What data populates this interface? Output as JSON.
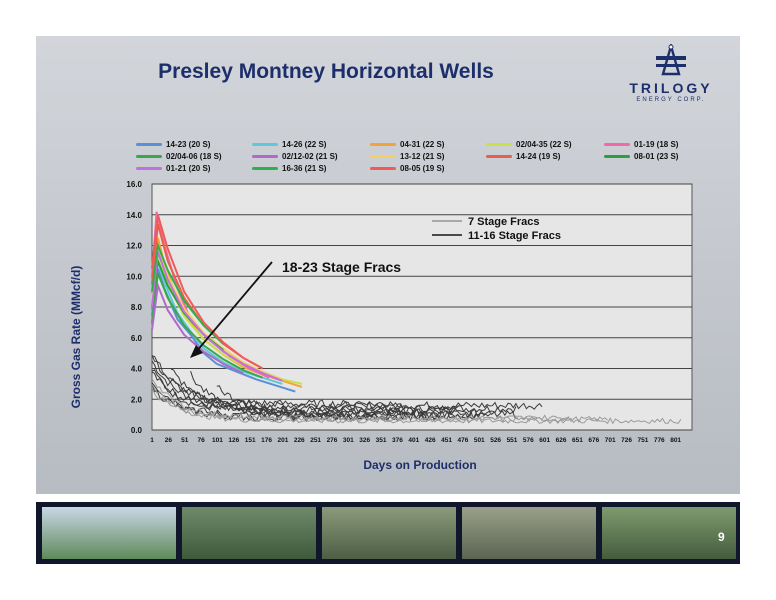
{
  "slide": {
    "title": "Presley Montney Horizontal Wells",
    "page_number": "9",
    "logo": {
      "name": "TRILOGY",
      "sub": "ENERGY CORP."
    }
  },
  "legend": [
    {
      "label": "14-23 (20 S)",
      "color": "#5b8fd6"
    },
    {
      "label": "14-26 (22 S)",
      "color": "#5fc8d8"
    },
    {
      "label": "04-31 (22 S)",
      "color": "#f2a33a"
    },
    {
      "label": "02/04-35 (22 S)",
      "color": "#c8e04a"
    },
    {
      "label": "01-19 (18 S)",
      "color": "#f06aa6"
    },
    {
      "label": "02/04-06 (18 S)",
      "color": "#3aa84a"
    },
    {
      "label": "02/12-02 (21 S)",
      "color": "#b06ac8"
    },
    {
      "label": "13-12 (21 S)",
      "color": "#f5d060"
    },
    {
      "label": "14-24 (19 S)",
      "color": "#e8604a"
    },
    {
      "label": "08-01 (23 S)",
      "color": "#2f9e3a"
    },
    {
      "label": "01-21 (20 S)",
      "color": "#c070e0"
    },
    {
      "label": "16-36 (21 S)",
      "color": "#2fb04a"
    },
    {
      "label": "08-05 (19 S)",
      "color": "#f05a5a"
    }
  ],
  "chart_data": {
    "type": "line",
    "title": "Presley Montney Horizontal Wells",
    "xlabel": "Days on Production",
    "ylabel": "Gross Gas Rate (MMcf/d)",
    "xlim": [
      1,
      826
    ],
    "ylim": [
      0,
      16
    ],
    "y_ticks": [
      "0.0",
      "2.0",
      "4.0",
      "6.0",
      "8.0",
      "10.0",
      "12.0",
      "14.0",
      "16.0"
    ],
    "x_ticks": [
      "1",
      "26",
      "51",
      "76",
      "101",
      "126",
      "151",
      "176",
      "201",
      "226",
      "251",
      "276",
      "301",
      "326",
      "351",
      "376",
      "401",
      "426",
      "451",
      "476",
      "501",
      "526",
      "551",
      "576",
      "601",
      "626",
      "651",
      "676",
      "701",
      "726",
      "751",
      "776",
      "801"
    ],
    "grid": "horizontal",
    "inline_legend": [
      {
        "label": "7 Stage Fracs",
        "color": "#a9a9a9"
      },
      {
        "label": "11-16 Stage Fracs",
        "color": "#4a4a4a"
      }
    ],
    "annotation": "18-23 Stage Fracs",
    "series": [
      {
        "name": "14-23 (20 S)",
        "x": [
          1,
          10,
          20,
          40,
          60,
          80,
          100,
          130,
          160,
          190,
          220
        ],
        "y": [
          7.5,
          10.5,
          9.2,
          7.2,
          6.2,
          5.0,
          4.3,
          3.8,
          3.3,
          2.9,
          2.5
        ]
      },
      {
        "name": "14-26 (22 S)",
        "x": [
          1,
          10,
          20,
          40,
          60,
          80,
          110,
          140,
          170,
          200
        ],
        "y": [
          8.0,
          11.0,
          9.6,
          7.6,
          6.4,
          5.3,
          4.4,
          3.8,
          3.4,
          3.0
        ]
      },
      {
        "name": "04-31 (22 S)",
        "x": [
          1,
          10,
          20,
          40,
          60,
          80,
          110,
          140,
          170,
          200,
          230
        ],
        "y": [
          9.0,
          12.5,
          10.8,
          8.5,
          7.0,
          5.9,
          4.9,
          4.1,
          3.6,
          3.2,
          2.8
        ]
      },
      {
        "name": "02/04-35 (22 S)",
        "x": [
          1,
          10,
          25,
          50,
          80,
          110,
          140,
          170,
          200,
          230
        ],
        "y": [
          8.2,
          11.5,
          9.6,
          7.4,
          5.9,
          4.9,
          4.2,
          3.7,
          3.3,
          3.0
        ]
      },
      {
        "name": "01-19 (18 S)",
        "x": [
          1,
          8,
          20,
          40,
          60,
          90,
          120,
          150,
          180
        ],
        "y": [
          10.0,
          14.2,
          12.0,
          9.2,
          7.2,
          5.8,
          4.8,
          4.0,
          3.4
        ]
      },
      {
        "name": "02/04-06 (18 S)",
        "x": [
          1,
          10,
          25,
          50,
          80,
          110,
          140,
          170
        ],
        "y": [
          7.0,
          10.2,
          8.6,
          6.8,
          5.5,
          4.6,
          3.9,
          3.4
        ]
      },
      {
        "name": "02/12-02 (21 S)",
        "x": [
          1,
          10,
          25,
          50,
          80,
          110,
          140
        ],
        "y": [
          6.5,
          9.4,
          7.8,
          6.2,
          5.1,
          4.3,
          3.7
        ]
      },
      {
        "name": "13-12 (21 S)",
        "x": [
          1,
          10,
          25,
          50,
          80,
          110,
          140,
          170,
          200
        ],
        "y": [
          8.5,
          12.0,
          10.0,
          7.9,
          6.3,
          5.3,
          4.4,
          3.8,
          3.3
        ]
      },
      {
        "name": "14-24 (19 S)",
        "x": [
          1,
          10,
          25,
          50,
          80,
          110,
          140,
          170
        ],
        "y": [
          9.5,
          13.4,
          11.0,
          8.6,
          6.8,
          5.6,
          4.7,
          4.0
        ]
      },
      {
        "name": "08-01 (23 S)",
        "x": [
          1,
          10,
          25,
          50,
          80,
          110
        ],
        "y": [
          8.0,
          11.0,
          9.4,
          7.6,
          6.2,
          5.2
        ]
      },
      {
        "name": "01-21 (20 S)",
        "x": [
          1,
          10,
          25,
          50,
          80,
          110,
          140,
          170,
          200
        ],
        "y": [
          8.0,
          11.6,
          9.8,
          7.7,
          6.2,
          5.1,
          4.3,
          3.7,
          3.2
        ]
      },
      {
        "name": "16-36 (21 S)",
        "x": [
          1,
          10,
          25,
          50,
          80,
          110
        ],
        "y": [
          9.0,
          12.0,
          10.4,
          8.4,
          6.8,
          5.6
        ]
      },
      {
        "name": "08-05 (19 S)",
        "x": [
          1,
          10,
          25,
          50,
          80,
          110,
          140,
          170
        ],
        "y": [
          10.5,
          14.0,
          11.8,
          9.0,
          7.0,
          5.7,
          4.7,
          4.0
        ]
      }
    ]
  },
  "photos": [
    {
      "name": "photo-pumpjack-rig",
      "colors": [
        "#c9d7e6",
        "#5f8a5a"
      ]
    },
    {
      "name": "photo-wellsite-forest",
      "colors": [
        "#6f8a6a",
        "#3f5a3a"
      ]
    },
    {
      "name": "photo-lease-aerial",
      "colors": [
        "#8a9a7a",
        "#4e5e46"
      ]
    },
    {
      "name": "photo-plant-aerial",
      "colors": [
        "#9aa08a",
        "#5a6552"
      ]
    },
    {
      "name": "photo-pad-aerial",
      "colors": [
        "#7f9a6f",
        "#455c3d"
      ]
    }
  ]
}
